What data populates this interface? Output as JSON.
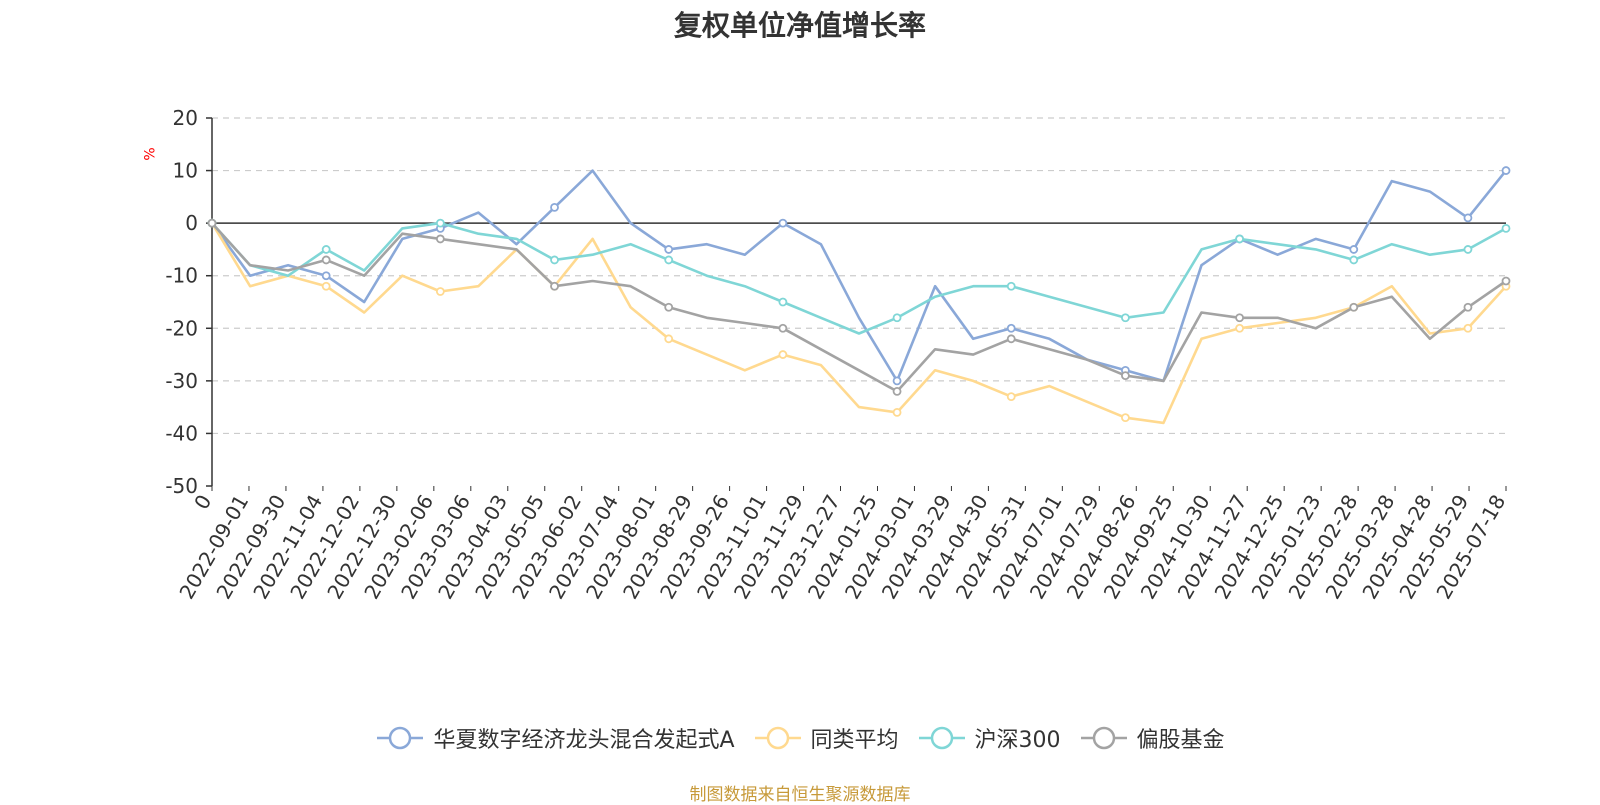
{
  "chart_data": {
    "type": "line",
    "title": "复权单位净值增长率",
    "ylabel": "%",
    "xlabel": "",
    "ylim": [
      -50,
      20
    ],
    "yticks": [
      20,
      10,
      0,
      -10,
      -20,
      -30,
      -40,
      -50
    ],
    "grid": true,
    "legend_position": "bottom",
    "x_tick_labels": [
      "0",
      "2022-09-01",
      "2022-09-30",
      "2022-11-04",
      "2022-12-02",
      "2022-12-30",
      "2023-02-06",
      "2023-03-06",
      "2023-04-03",
      "2023-05-05",
      "2023-06-02",
      "2023-07-04",
      "2023-08-01",
      "2023-08-29",
      "2023-09-26",
      "2023-11-01",
      "2023-11-29",
      "2023-12-27",
      "2024-01-25",
      "2024-03-01",
      "2024-03-29",
      "2024-04-30",
      "2024-05-31",
      "2024-07-01",
      "2024-07-29",
      "2024-08-26",
      "2024-09-25",
      "2024-10-30",
      "2024-11-27",
      "2024-12-25",
      "2025-01-23",
      "2025-02-28",
      "2025-03-28",
      "2025-04-28",
      "2025-05-29",
      "2025-07-18"
    ],
    "x": [
      "2022-09-01",
      "2022-09-30",
      "2022-11-04",
      "2022-12-02",
      "2022-12-30",
      "2023-02-06",
      "2023-03-06",
      "2023-04-03",
      "2023-05-05",
      "2023-06-02",
      "2023-07-04",
      "2023-08-01",
      "2023-08-29",
      "2023-09-26",
      "2023-11-01",
      "2023-11-29",
      "2023-12-27",
      "2024-01-25",
      "2024-03-01",
      "2024-03-29",
      "2024-04-30",
      "2024-05-31",
      "2024-07-01",
      "2024-07-29",
      "2024-08-26",
      "2024-09-25",
      "2024-10-30",
      "2024-11-27",
      "2024-12-25",
      "2025-01-23",
      "2025-02-28",
      "2025-03-28",
      "2025-04-28",
      "2025-05-29",
      "2025-07-18"
    ],
    "series": [
      {
        "name": "华夏数字经济龙头混合发起式A",
        "color": "#8aa8d8",
        "values": [
          0,
          -10,
          -8,
          -10,
          -15,
          -3,
          -1,
          2,
          -4,
          3,
          10,
          0,
          -5,
          -4,
          -6,
          0,
          -4,
          -18,
          -30,
          -12,
          -22,
          -20,
          -22,
          -26,
          -28,
          -30,
          -8,
          -3,
          -6,
          -3,
          -5,
          8,
          6,
          1,
          10
        ]
      },
      {
        "name": "同类平均",
        "color": "#ffd98f",
        "values": [
          0,
          -12,
          -10,
          -12,
          -17,
          -10,
          -13,
          -12,
          -5,
          -12,
          -3,
          -16,
          -22,
          -25,
          -28,
          -25,
          -27,
          -35,
          -36,
          -28,
          -30,
          -33,
          -31,
          -34,
          -37,
          -38,
          -22,
          -20,
          -19,
          -18,
          -16,
          -12,
          -21,
          -20,
          -12
        ]
      },
      {
        "name": "沪深300",
        "color": "#7fd6d6",
        "values": [
          0,
          -8,
          -10,
          -5,
          -9,
          -1,
          0,
          -2,
          -3,
          -7,
          -6,
          -4,
          -7,
          -10,
          -12,
          -15,
          -18,
          -21,
          -18,
          -14,
          -12,
          -12,
          -14,
          -16,
          -18,
          -17,
          -5,
          -3,
          -4,
          -5,
          -7,
          -4,
          -6,
          -5,
          -1
        ]
      },
      {
        "name": "偏股基金",
        "color": "#a3a3a3",
        "values": [
          0,
          -8,
          -9,
          -7,
          -10,
          -2,
          -3,
          -4,
          -5,
          -12,
          -11,
          -12,
          -16,
          -18,
          -19,
          -20,
          -24,
          -28,
          -32,
          -24,
          -25,
          -22,
          -24,
          -26,
          -29,
          -30,
          -17,
          -18,
          -18,
          -20,
          -16,
          -14,
          -22,
          -16,
          -11
        ]
      }
    ]
  },
  "footer": {
    "source": "制图数据来自恒生聚源数据库"
  },
  "colors": {
    "title": "#333333",
    "axis": "#333333",
    "grid": "#cccccc",
    "ylabel": "#ff0000",
    "footer": "#c79a3a"
  }
}
